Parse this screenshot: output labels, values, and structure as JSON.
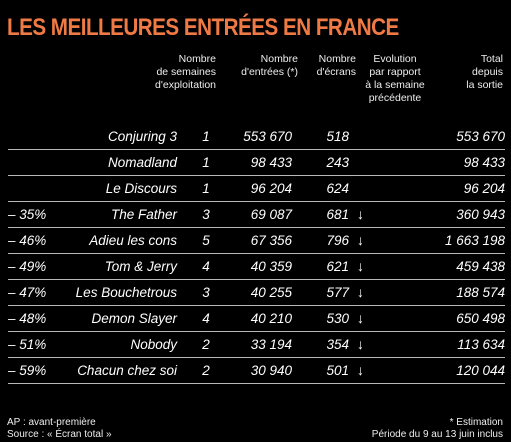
{
  "title": "LES MEILLEURES ENTRÉES EN FRANCE",
  "headers": {
    "weeks": "Nombre\nde semaines\nd'exploitation",
    "entries": "Nombre\nd'entrées (*)",
    "screens": "Nombre\nd'écrans",
    "evolution": "Evolution\npar rapport\nà la semaine\nprécédente",
    "total": "Total\ndepuis\nla sortie"
  },
  "chart_data": {
    "type": "table",
    "title": "LES MEILLEURES ENTRÉES EN FRANCE",
    "columns": [
      "Nombre de semaines d'exploitation",
      "Nombre d'entrées (*)",
      "Nombre d'écrans",
      "Evolution par rapport à la semaine précédente",
      "Total depuis la sortie"
    ],
    "rows": [
      {
        "film": "Conjuring 3",
        "weeks": "1",
        "entries": "553 670",
        "screens": "518",
        "arrow": "",
        "evolution": "",
        "total": "553 670"
      },
      {
        "film": "Nomadland",
        "weeks": "1",
        "entries": "98 433",
        "screens": "243",
        "arrow": "",
        "evolution": "",
        "total": "98 433"
      },
      {
        "film": "Le Discours",
        "weeks": "1",
        "entries": "96 204",
        "screens": "624",
        "arrow": "",
        "evolution": "",
        "total": "96 204"
      },
      {
        "film": "The Father",
        "weeks": "3",
        "entries": "69 087",
        "screens": "681",
        "arrow": "↓",
        "evolution": "– 35%",
        "total": "360 943"
      },
      {
        "film": "Adieu les cons",
        "weeks": "5",
        "entries": "67 356",
        "screens": "796",
        "arrow": "↓",
        "evolution": "– 46%",
        "total": "1 663 198"
      },
      {
        "film": "Tom & Jerry",
        "weeks": "4",
        "entries": "40 359",
        "screens": "621",
        "arrow": "↓",
        "evolution": "– 49%",
        "total": "459 438"
      },
      {
        "film": "Les Bouchetrous",
        "weeks": "3",
        "entries": "40 255",
        "screens": "577",
        "arrow": "↓",
        "evolution": "– 47%",
        "total": "188 574"
      },
      {
        "film": "Demon Slayer",
        "weeks": "4",
        "entries": "40 210",
        "screens": "530",
        "arrow": "↓",
        "evolution": "– 48%",
        "total": "650 498"
      },
      {
        "film": "Nobody",
        "weeks": "2",
        "entries": "33 194",
        "screens": "354",
        "arrow": "↓",
        "evolution": "– 51%",
        "total": "113 634"
      },
      {
        "film": "Chacun chez soi",
        "weeks": "2",
        "entries": "30 940",
        "screens": "501",
        "arrow": "↓",
        "evolution": "– 59%",
        "total": "120 044"
      }
    ]
  },
  "footer": {
    "ap": "AP : avant-première",
    "source": "Source : « Écran total »",
    "estimation": "* Estimation",
    "period": "Période du 9 au 13 juin inclus"
  },
  "colors": {
    "title": "#f07a45",
    "background": "#000000",
    "text": "#ffffff",
    "rule": "#b9b9b9"
  }
}
